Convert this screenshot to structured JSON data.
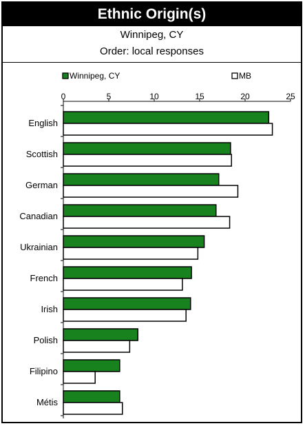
{
  "title": "Ethnic Origin(s)",
  "subtitle1": "Winnipeg, CY",
  "subtitle2": "Order: local responses",
  "colors": {
    "series1": "#17821e",
    "series2": "#ffffff",
    "stroke": "#000000"
  },
  "chart_data": {
    "type": "bar",
    "orientation": "horizontal",
    "categories": [
      "English",
      "Scottish",
      "German",
      "Canadian",
      "Ukrainian",
      "French",
      "Irish",
      "Polish",
      "Filipino",
      "Métis"
    ],
    "series": [
      {
        "name": "Winnipeg, CY",
        "values": [
          22.6,
          18.4,
          17.1,
          16.8,
          15.5,
          14.1,
          14.0,
          8.2,
          6.2,
          6.2
        ]
      },
      {
        "name": "MB",
        "values": [
          23.0,
          18.5,
          19.2,
          18.3,
          14.8,
          13.1,
          13.5,
          7.3,
          3.5,
          6.5
        ]
      }
    ],
    "xlim": [
      0,
      25
    ],
    "xticks": [
      "0",
      "5",
      "10",
      "15",
      "20",
      "25"
    ],
    "legend_position": "top",
    "grid": false
  }
}
